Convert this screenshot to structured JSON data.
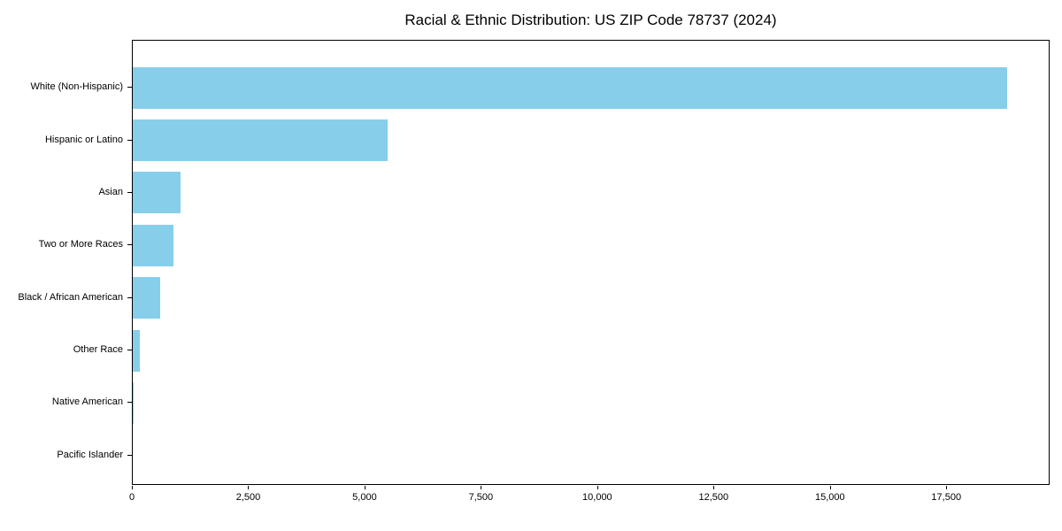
{
  "chart_data": {
    "type": "bar",
    "orientation": "horizontal",
    "title": "Racial & Ethnic Distribution: US ZIP Code 78737 (2024)",
    "categories": [
      "White (Non-Hispanic)",
      "Hispanic or Latino",
      "Asian",
      "Two or More Races",
      "Black / African American",
      "Other Race",
      "Native American",
      "Pacific Islander"
    ],
    "values": [
      18780,
      5485,
      1030,
      875,
      595,
      145,
      25,
      0
    ],
    "xlabel": "",
    "ylabel": "",
    "xlim": [
      0,
      19720
    ],
    "x_ticks": [
      0,
      2500,
      5000,
      7500,
      10000,
      12500,
      15000,
      17500
    ],
    "x_tick_labels": [
      "0",
      "2,500",
      "5,000",
      "7,500",
      "10,000",
      "12,500",
      "15,000",
      "17,500"
    ],
    "bar_color": "#87CEEB",
    "axis_color": "#000000",
    "text_color": "#000000",
    "background_color": "#ffffff",
    "grid": false,
    "legend_position": "none"
  }
}
